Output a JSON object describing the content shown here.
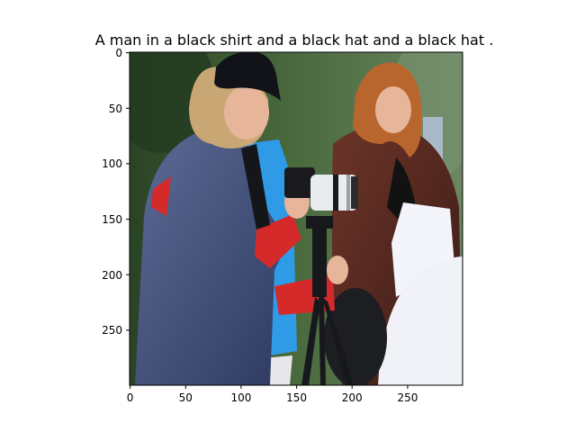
{
  "figure": {
    "title": "A man in a black shirt and a black hat and a black hat ."
  },
  "axes": {
    "x_ticks": [
      "0",
      "50",
      "100",
      "150",
      "200",
      "250"
    ],
    "y_ticks": [
      "0",
      "50",
      "100",
      "150",
      "200",
      "250"
    ],
    "xlim": [
      0,
      300
    ],
    "ylim": [
      300,
      0
    ],
    "frame_color": "#000000"
  },
  "image": {
    "description_icon": "photo-of-photographers-icon",
    "palette": {
      "background_foliage": "#3f5a36",
      "jacket_navy": "#3b4a78",
      "jacket_red": "#d62a2a",
      "coat_brown": "#5a2a22",
      "hair_red": "#b9652e",
      "hat_black": "#111318",
      "skin": "#e6b59a",
      "paper_white": "#f3f5fb",
      "camera_white": "#e9ecef",
      "tripod_black": "#17181c",
      "blue_hoodie": "#2f9be6"
    }
  }
}
